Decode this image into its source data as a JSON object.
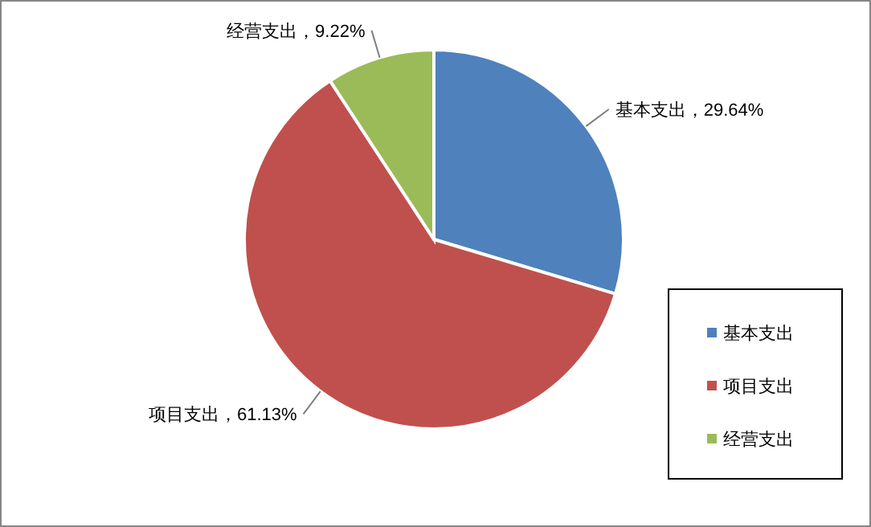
{
  "chart_data": {
    "type": "pie",
    "categories": [
      "基本支出",
      "项目支出",
      "经营支出"
    ],
    "values": [
      29.64,
      61.13,
      9.22
    ],
    "value_labels": [
      "基本支出，29.64%",
      "项目支出，61.13%",
      "经营支出，9.22%"
    ],
    "colors": [
      "#4f81bd",
      "#c0504d",
      "#9bbb59"
    ],
    "legend": "right"
  }
}
